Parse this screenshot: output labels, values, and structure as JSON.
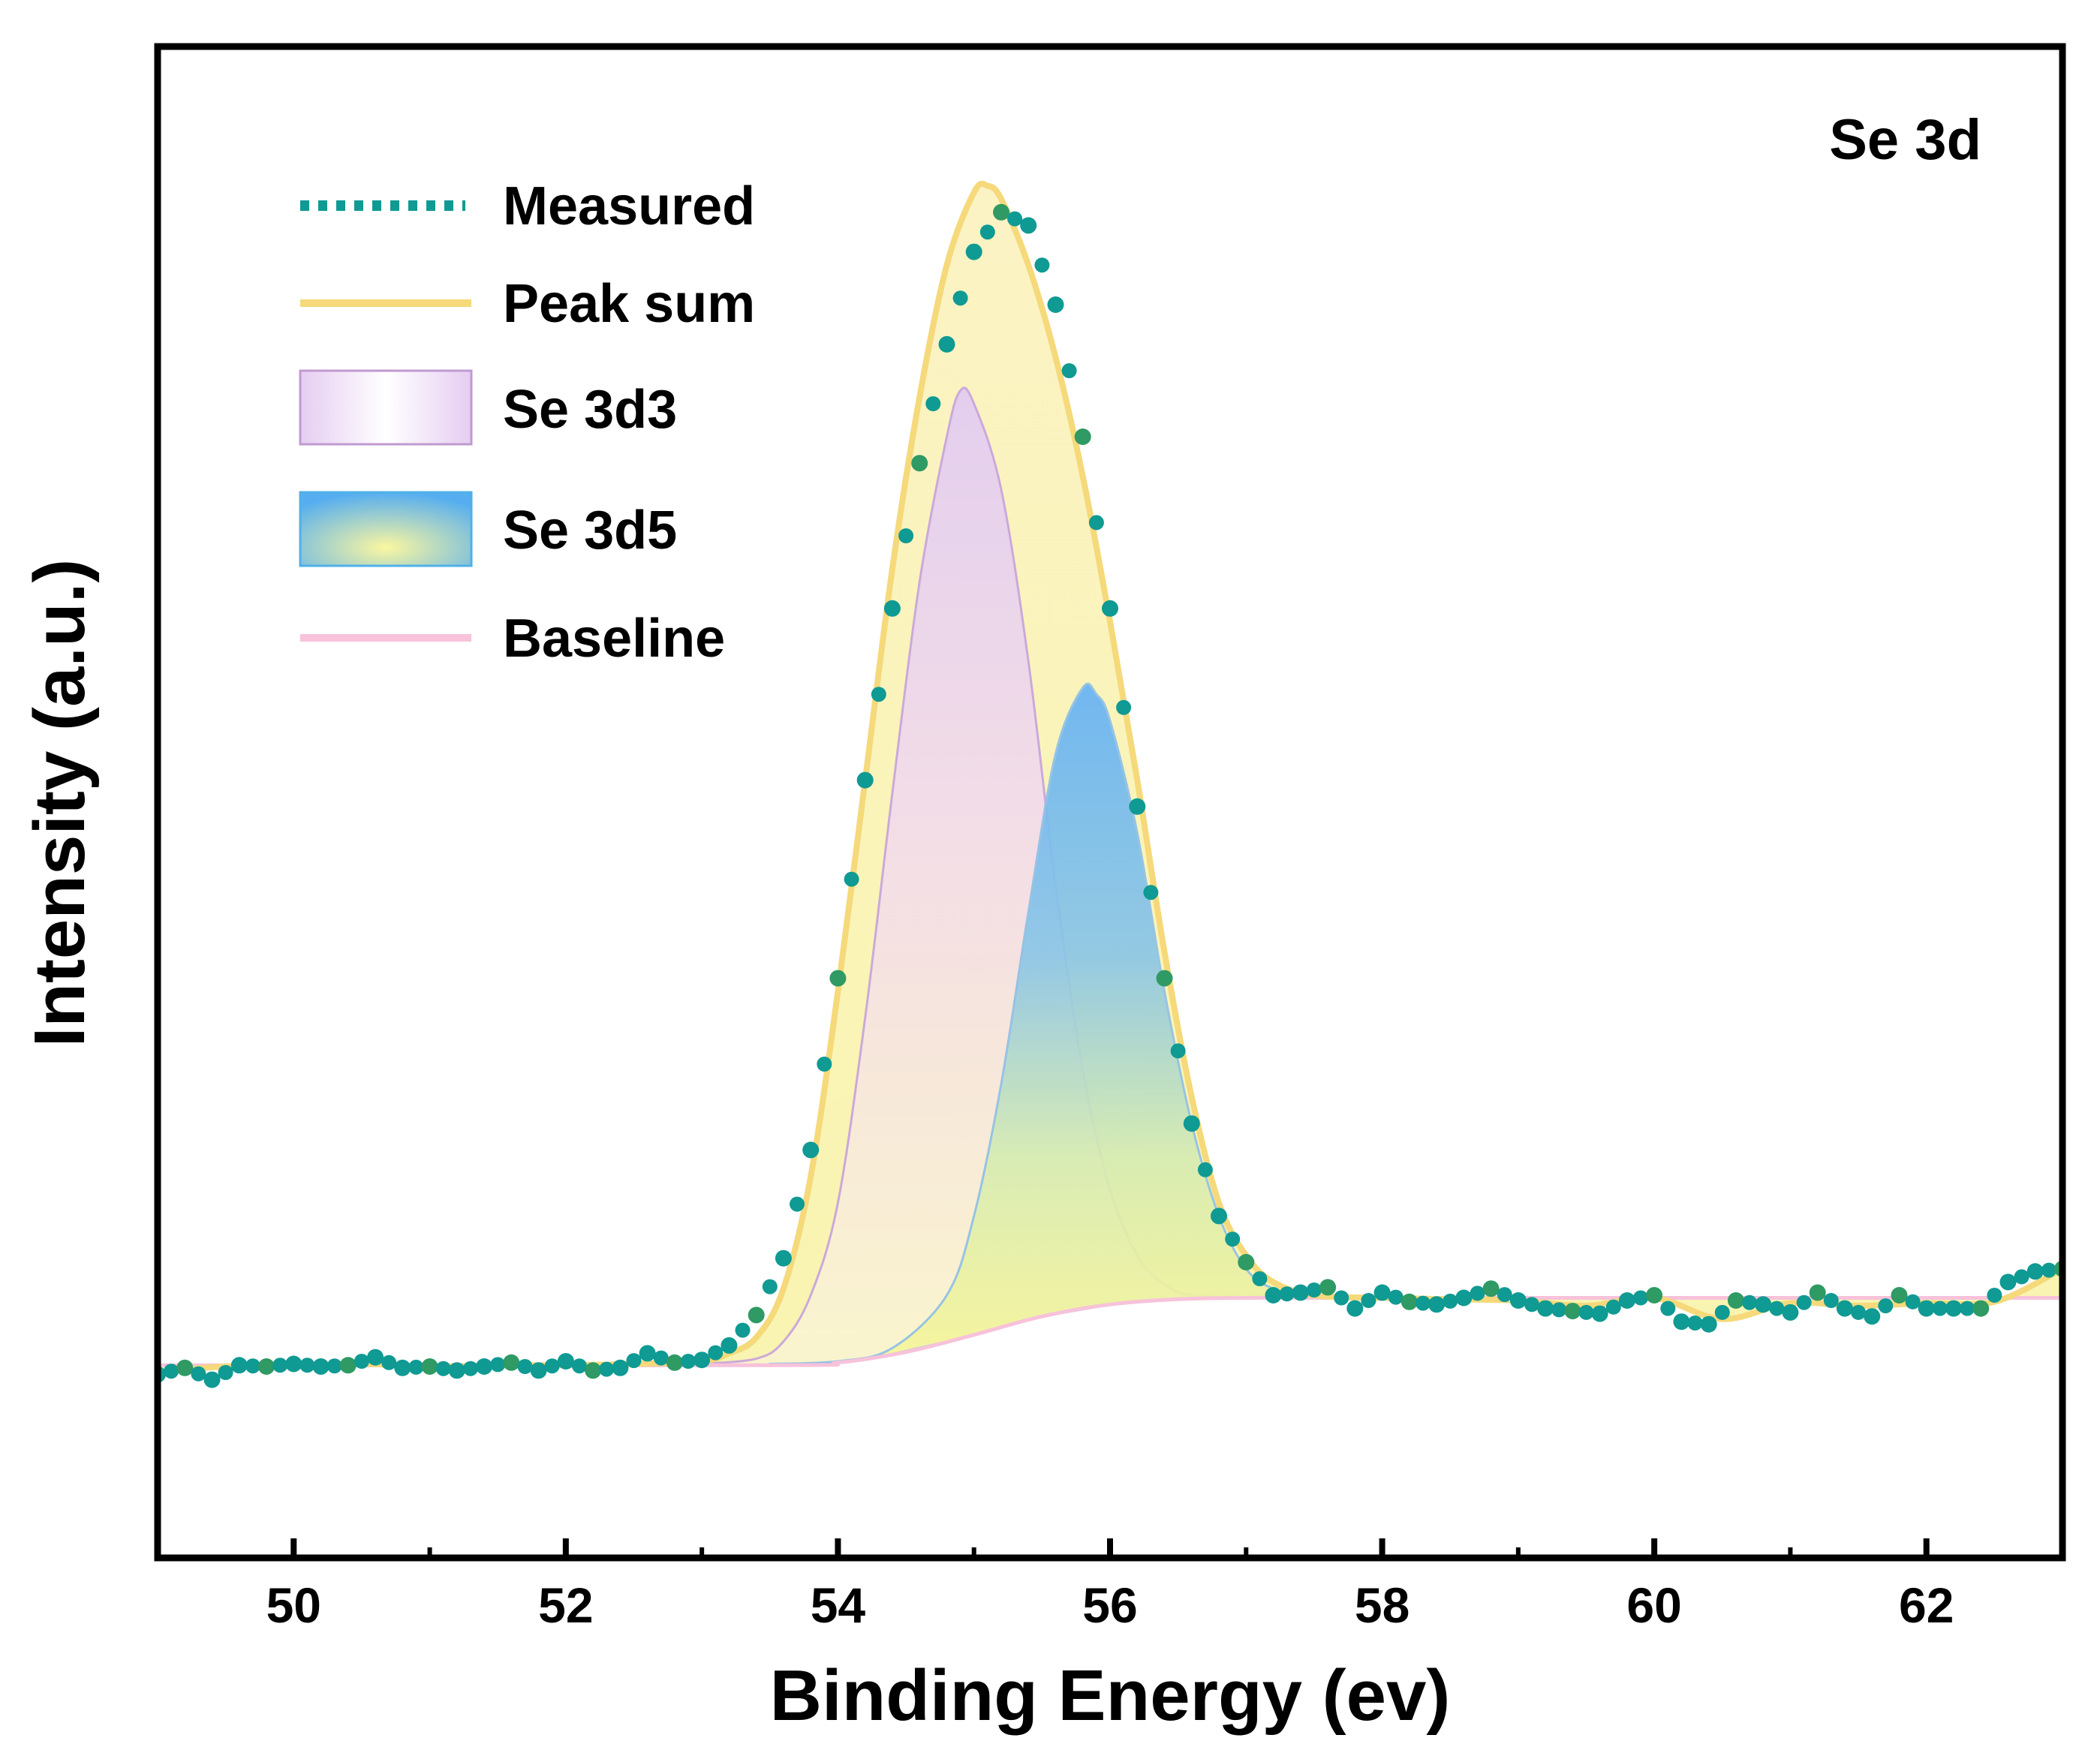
{
  "chart_data": {
    "type": "line",
    "title": "",
    "corner_label": "Se  3d",
    "xlabel": "Binding Energy  (ev)",
    "ylabel": "Intensity  (a.u.)",
    "xlim": [
      49,
      63
    ],
    "ylim": [
      0,
      100
    ],
    "x_ticks": [
      50,
      52,
      54,
      56,
      58,
      60,
      62
    ],
    "y_ticks_shown": false,
    "grid": false,
    "legend_position": "top-left",
    "legend": [
      {
        "label": "Measured",
        "kind": "dotted-line",
        "color": "#0f9a93"
      },
      {
        "label": "Peak  sum",
        "kind": "line",
        "color": "#f5d97a"
      },
      {
        "label": "Se  3d3",
        "kind": "patch",
        "color": "#e6d4f2"
      },
      {
        "label": "Se  3d5",
        "kind": "patch",
        "color": "#6fbaf2"
      },
      {
        "label": "Baseline",
        "kind": "line",
        "color": "#f7c2da"
      }
    ],
    "colors": {
      "measured": "#0f9a93",
      "measured_alt": "#2f9a63",
      "peak_sum": "#f5d97a",
      "se3d3_top": "#e6d4f2",
      "se3d3_bottom": "#fbf3c2",
      "se3d5_top": "#6fbaf2",
      "se3d5_bottom": "#f7f48e",
      "baseline": "#f7c2da"
    },
    "series": [
      {
        "name": "Measured",
        "x": [
          49.0,
          49.2,
          49.4,
          49.6,
          49.8,
          50.0,
          50.2,
          50.4,
          50.6,
          50.8,
          51.0,
          51.2,
          51.4,
          51.6,
          51.8,
          52.0,
          52.2,
          52.4,
          52.6,
          52.8,
          53.0,
          53.2,
          53.4,
          53.6,
          53.8,
          54.0,
          54.2,
          54.4,
          54.6,
          54.8,
          55.0,
          55.2,
          55.4,
          55.6,
          55.8,
          56.0,
          56.2,
          56.4,
          56.6,
          56.8,
          57.0,
          57.2,
          57.4,
          57.6,
          57.8,
          58.0,
          58.2,
          58.4,
          58.6,
          58.8,
          59.0,
          59.2,
          59.4,
          59.6,
          59.8,
          60.0,
          60.2,
          60.4,
          60.6,
          60.8,
          61.0,
          61.2,
          61.4,
          61.6,
          61.8,
          62.0,
          62.2,
          62.4,
          62.6,
          62.8,
          63.0
        ],
        "y": [
          9.0,
          9.5,
          8.6,
          9.7,
          9.6,
          9.8,
          9.6,
          9.7,
          10.3,
          9.5,
          9.6,
          9.3,
          9.6,
          9.9,
          9.3,
          10.0,
          9.3,
          9.5,
          10.6,
          9.9,
          10.1,
          11.2,
          13.5,
          17.8,
          26.0,
          39.0,
          54.0,
          67.0,
          78.0,
          87.0,
          94.0,
          97.0,
          96.0,
          90.0,
          80.0,
          67.0,
          52.0,
          39.0,
          28.0,
          21.0,
          17.5,
          15.0,
          15.2,
          15.6,
          14.0,
          15.2,
          14.5,
          14.3,
          14.8,
          15.5,
          14.6,
          14.0,
          13.8,
          13.6,
          14.6,
          15.0,
          13.0,
          12.8,
          14.6,
          14.3,
          13.7,
          15.2,
          14.0,
          13.4,
          15.0,
          14.0,
          14.0,
          14.0,
          16.0,
          16.8,
          17.0
        ]
      },
      {
        "name": "Peak  sum",
        "x": [
          49.0,
          49.5,
          50.0,
          50.5,
          51.0,
          51.5,
          52.0,
          52.5,
          53.0,
          53.2,
          53.4,
          53.6,
          53.8,
          54.0,
          54.2,
          54.4,
          54.6,
          54.8,
          55.0,
          55.1,
          55.2,
          55.4,
          55.6,
          55.8,
          56.0,
          56.2,
          56.4,
          56.6,
          56.8,
          57.0,
          57.2,
          57.5,
          58.0,
          58.5,
          59.0,
          59.5,
          60.0,
          60.5,
          61.0,
          61.5,
          62.0,
          62.5,
          63.0
        ],
        "y": [
          9.2,
          9.6,
          9.6,
          9.8,
          9.6,
          9.7,
          9.7,
          9.8,
          10.0,
          10.6,
          11.8,
          15.5,
          24.0,
          38.0,
          54.0,
          70.0,
          83.0,
          93.0,
          98.5,
          99.0,
          98.0,
          93.0,
          86.0,
          77.0,
          66.0,
          54.0,
          41.0,
          30.0,
          22.0,
          18.0,
          16.0,
          15.0,
          14.8,
          14.7,
          14.6,
          14.2,
          14.8,
          13.2,
          14.4,
          14.2,
          14.4,
          14.5,
          17.0
        ]
      },
      {
        "name": "Se  3d3",
        "x": [
          53.0,
          53.4,
          53.6,
          53.8,
          54.0,
          54.2,
          54.4,
          54.6,
          54.8,
          54.9,
          55.0,
          55.2,
          55.4,
          55.6,
          55.8,
          56.0,
          56.2,
          56.4,
          56.6,
          57.0,
          57.5
        ],
        "y": [
          9.8,
          10.2,
          11.5,
          15.0,
          22.0,
          36.0,
          53.0,
          69.0,
          80.0,
          83.5,
          82.5,
          76.0,
          63.0,
          46.0,
          32.0,
          23.0,
          18.0,
          15.8,
          15.0,
          14.8,
          14.8
        ]
      },
      {
        "name": "Se  3d5",
        "x": [
          53.5,
          54.0,
          54.4,
          54.8,
          55.0,
          55.2,
          55.4,
          55.6,
          55.8,
          55.9,
          56.0,
          56.2,
          56.4,
          56.6,
          56.8,
          57.0,
          57.2,
          57.5,
          58.0
        ],
        "y": [
          9.8,
          10.0,
          11.0,
          15.0,
          21.0,
          31.0,
          44.0,
          56.0,
          61.0,
          60.5,
          58.5,
          50.0,
          38.0,
          28.0,
          21.0,
          17.0,
          15.5,
          14.9,
          14.8
        ]
      },
      {
        "name": "Baseline",
        "x": [
          49.0,
          53.5,
          54.0,
          54.5,
          55.0,
          55.5,
          56.0,
          56.5,
          57.0,
          57.5,
          58.0,
          63.0
        ],
        "y": [
          9.7,
          9.7,
          9.9,
          10.7,
          12.0,
          13.4,
          14.3,
          14.7,
          14.8,
          14.8,
          14.8,
          14.8
        ]
      }
    ]
  }
}
